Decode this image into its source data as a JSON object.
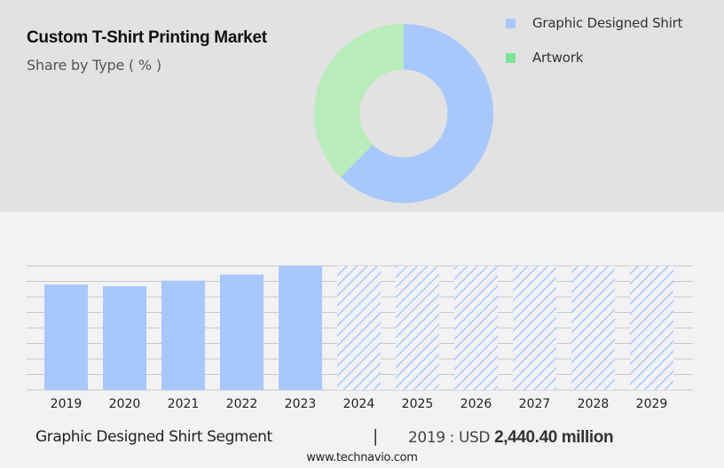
{
  "header": {
    "title": "Custom T-Shirt Printing Market",
    "subtitle": "Share by Type ( % )"
  },
  "legend": [
    {
      "label": "Graphic Designed Shirt",
      "color": "#a8c8fc"
    },
    {
      "label": "Artwork",
      "color": "#7de39a"
    }
  ],
  "footer": {
    "segment": "Graphic Designed Shirt Segment",
    "separator": "|",
    "value_prefix": "2019 : USD ",
    "value_bold": "2,440.40 million",
    "url": "www.technavio.com"
  },
  "chart_data": [
    {
      "type": "pie",
      "title": "Custom T-Shirt Printing Market",
      "subtitle": "Share by Type ( % )",
      "donut": true,
      "labels": [
        "Graphic Designed Shirt",
        "Artwork"
      ],
      "values": [
        62.4,
        37.6
      ],
      "colors": [
        "#a8c8fc",
        "#b8edbb"
      ],
      "legend_position": "right"
    },
    {
      "type": "bar",
      "categories": [
        "2019",
        "2020",
        "2021",
        "2022",
        "2023",
        "2024",
        "2025",
        "2026",
        "2027",
        "2028",
        "2029"
      ],
      "series": [
        {
          "name": "Graphic Designed Shirt",
          "values": [
            2440.4,
            2400,
            2530,
            2670,
            2870,
            null,
            null,
            null,
            null,
            null,
            null
          ]
        }
      ],
      "forecast_years": [
        "2024",
        "2025",
        "2026",
        "2027",
        "2028",
        "2029"
      ],
      "forecast_style": "hatched",
      "xlabel": "",
      "ylabel": "",
      "grid": true,
      "gridlines": 9,
      "bar_color": "#a8c8fc",
      "annotation": "2019 : USD 2,440.40 million"
    }
  ]
}
